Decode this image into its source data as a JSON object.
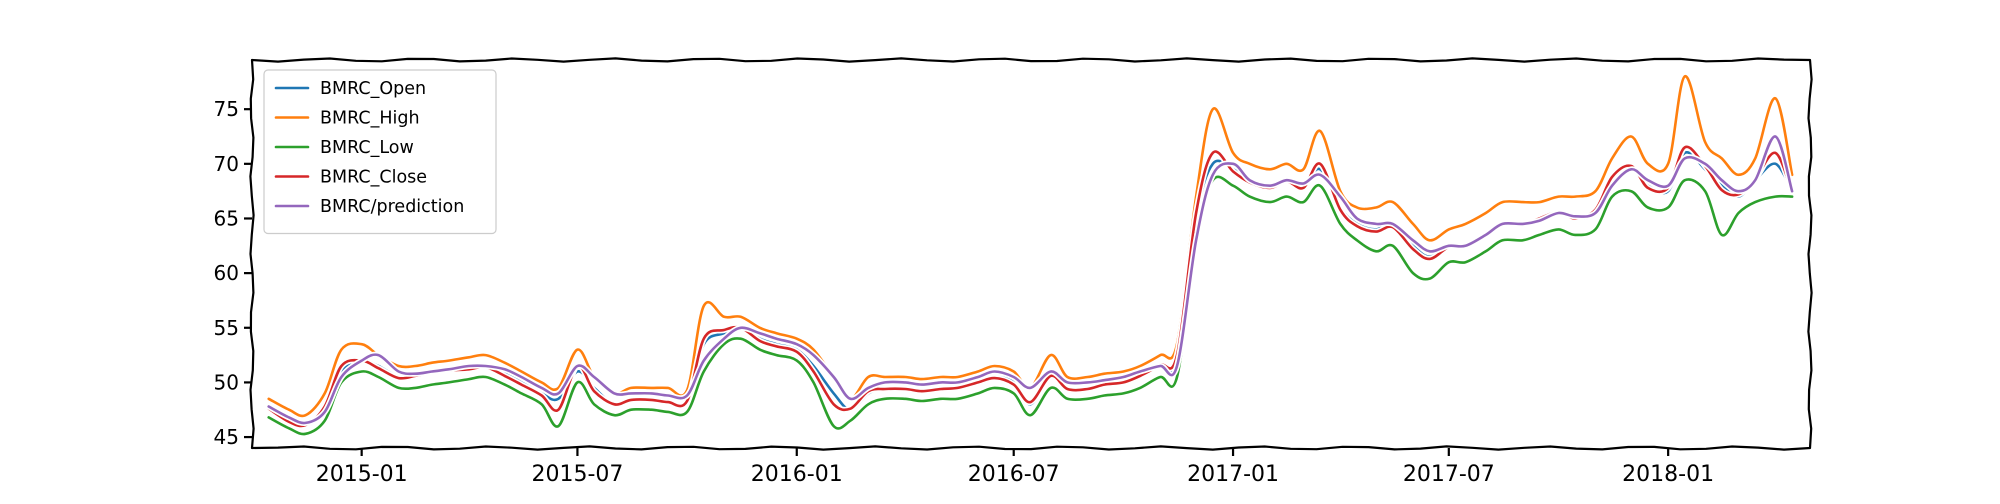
{
  "chart_data": {
    "type": "line",
    "title": "",
    "xlabel": "",
    "ylabel": "",
    "style": "xkcd",
    "x_axis": {
      "type": "date",
      "range": [
        "2014-10-01",
        "2018-04-30"
      ],
      "tick_dates": [
        "2015-01-01",
        "2015-07-01",
        "2016-01-01",
        "2016-07-01",
        "2017-01-01",
        "2017-07-01",
        "2018-01-01"
      ],
      "tick_labels": [
        "2015-01",
        "2015-07",
        "2016-01",
        "2016-07",
        "2017-01",
        "2017-07",
        "2018-01"
      ]
    },
    "y_axis": {
      "range": [
        44,
        79.5
      ],
      "ticks": [
        45,
        50,
        55,
        60,
        65,
        70,
        75
      ],
      "tick_labels": [
        "45",
        "50",
        "55",
        "60",
        "65",
        "70",
        "75"
      ]
    },
    "grid": false,
    "legend": {
      "position": "top-left"
    },
    "x": [
      "2014-10-15",
      "2014-11-01",
      "2014-11-15",
      "2014-12-01",
      "2014-12-15",
      "2015-01-01",
      "2015-01-15",
      "2015-02-01",
      "2015-02-15",
      "2015-03-01",
      "2015-03-15",
      "2015-04-01",
      "2015-04-15",
      "2015-05-01",
      "2015-05-15",
      "2015-06-01",
      "2015-06-15",
      "2015-07-01",
      "2015-07-15",
      "2015-08-01",
      "2015-08-15",
      "2015-09-01",
      "2015-09-15",
      "2015-10-01",
      "2015-10-15",
      "2015-11-01",
      "2015-11-15",
      "2015-12-01",
      "2015-12-15",
      "2016-01-01",
      "2016-01-15",
      "2016-02-01",
      "2016-02-15",
      "2016-03-01",
      "2016-03-15",
      "2016-04-01",
      "2016-04-15",
      "2016-05-01",
      "2016-05-15",
      "2016-06-01",
      "2016-06-15",
      "2016-07-01",
      "2016-07-15",
      "2016-08-01",
      "2016-08-15",
      "2016-09-01",
      "2016-09-15",
      "2016-10-01",
      "2016-10-15",
      "2016-11-01",
      "2016-11-15",
      "2016-12-01",
      "2016-12-15",
      "2017-01-01",
      "2017-01-15",
      "2017-02-01",
      "2017-02-15",
      "2017-03-01",
      "2017-03-15",
      "2017-04-01",
      "2017-04-15",
      "2017-05-01",
      "2017-05-15",
      "2017-06-01",
      "2017-06-15",
      "2017-07-01",
      "2017-07-15",
      "2017-08-01",
      "2017-08-15",
      "2017-09-01",
      "2017-09-15",
      "2017-10-01",
      "2017-10-15",
      "2017-11-01",
      "2017-11-15",
      "2017-12-01",
      "2017-12-15",
      "2018-01-01",
      "2018-01-15",
      "2018-02-01",
      "2018-02-15",
      "2018-03-01",
      "2018-03-15",
      "2018-04-01",
      "2018-04-15"
    ],
    "series": [
      {
        "name": "BMRC_Open",
        "color": "#1f77b4",
        "values": [
          47.5,
          46.5,
          46.0,
          47.5,
          51.0,
          52.0,
          51.5,
          50.5,
          50.5,
          50.8,
          51.0,
          51.3,
          51.5,
          50.8,
          50.0,
          49.0,
          48.5,
          51.0,
          49.5,
          48.0,
          48.5,
          48.5,
          48.3,
          48.3,
          53.5,
          54.5,
          55.0,
          54.0,
          53.5,
          53.0,
          51.5,
          49.0,
          47.5,
          49.0,
          49.5,
          49.5,
          49.3,
          49.5,
          49.5,
          50.0,
          50.5,
          50.0,
          48.0,
          50.5,
          49.5,
          49.5,
          49.8,
          50.0,
          50.5,
          51.5,
          52.0,
          65.0,
          70.0,
          69.5,
          68.5,
          68.0,
          68.5,
          68.0,
          69.5,
          66.0,
          64.5,
          64.0,
          64.5,
          62.5,
          61.5,
          62.5,
          62.5,
          63.5,
          64.5,
          64.5,
          65.0,
          65.5,
          65.0,
          65.5,
          68.5,
          69.5,
          68.0,
          67.5,
          71.0,
          69.5,
          68.0,
          67.0,
          68.5,
          70.0,
          67.5
        ]
      },
      {
        "name": "BMRC_High",
        "color": "#ff7f0e",
        "values": [
          48.5,
          47.5,
          47.0,
          49.0,
          53.0,
          53.5,
          52.5,
          51.5,
          51.5,
          51.8,
          52.0,
          52.3,
          52.5,
          51.8,
          51.0,
          50.0,
          49.5,
          53.0,
          50.5,
          49.0,
          49.5,
          49.5,
          49.5,
          49.3,
          57.0,
          56.0,
          56.0,
          55.0,
          54.5,
          54.0,
          53.0,
          50.5,
          48.5,
          50.5,
          50.5,
          50.5,
          50.3,
          50.5,
          50.5,
          51.0,
          51.5,
          51.0,
          49.5,
          52.5,
          50.5,
          50.5,
          50.8,
          51.0,
          51.5,
          52.5,
          53.5,
          67.0,
          75.0,
          71.0,
          70.0,
          69.5,
          70.0,
          69.5,
          73.0,
          67.5,
          66.0,
          66.0,
          66.5,
          64.5,
          63.0,
          64.0,
          64.5,
          65.5,
          66.5,
          66.5,
          66.5,
          67.0,
          67.0,
          67.5,
          70.5,
          72.5,
          70.0,
          70.0,
          78.0,
          72.0,
          70.5,
          69.0,
          70.5,
          76.0,
          69.0
        ]
      },
      {
        "name": "BMRC_Low",
        "color": "#2ca02c",
        "values": [
          46.8,
          45.8,
          45.3,
          46.5,
          50.0,
          51.0,
          50.5,
          49.5,
          49.5,
          49.8,
          50.0,
          50.3,
          50.5,
          49.8,
          49.0,
          48.0,
          46.0,
          50.0,
          48.0,
          47.0,
          47.5,
          47.5,
          47.3,
          47.3,
          51.0,
          53.5,
          54.0,
          53.0,
          52.5,
          52.0,
          50.0,
          46.0,
          46.5,
          48.0,
          48.5,
          48.5,
          48.3,
          48.5,
          48.5,
          49.0,
          49.5,
          49.0,
          47.0,
          49.5,
          48.5,
          48.5,
          48.8,
          49.0,
          49.5,
          50.5,
          50.5,
          63.0,
          68.5,
          68.0,
          67.0,
          66.5,
          67.0,
          66.5,
          68.0,
          64.5,
          63.0,
          62.0,
          62.5,
          60.0,
          59.5,
          61.0,
          61.0,
          62.0,
          63.0,
          63.0,
          63.5,
          64.0,
          63.5,
          64.0,
          67.0,
          67.5,
          66.0,
          66.0,
          68.5,
          67.5,
          63.5,
          65.5,
          66.5,
          67.0,
          67.0
        ]
      },
      {
        "name": "BMRC_Close",
        "color": "#d62728",
        "values": [
          47.6,
          46.4,
          46.1,
          47.8,
          51.5,
          52.0,
          51.3,
          50.4,
          50.6,
          50.9,
          51.1,
          51.2,
          51.4,
          50.6,
          49.8,
          48.8,
          47.5,
          51.5,
          49.2,
          48.0,
          48.4,
          48.4,
          48.2,
          48.3,
          54.0,
          54.8,
          55.0,
          53.8,
          53.3,
          52.8,
          51.0,
          48.0,
          47.6,
          49.2,
          49.4,
          49.4,
          49.2,
          49.4,
          49.5,
          50.0,
          50.4,
          49.8,
          48.2,
          50.6,
          49.4,
          49.4,
          49.8,
          50.0,
          50.6,
          51.6,
          52.5,
          65.5,
          71.0,
          69.3,
          68.3,
          67.8,
          68.4,
          67.8,
          70.0,
          65.8,
          64.3,
          63.8,
          64.2,
          62.2,
          61.3,
          62.4,
          62.6,
          63.6,
          64.6,
          64.4,
          65.0,
          65.6,
          65.0,
          65.8,
          68.8,
          69.8,
          67.8,
          67.8,
          71.5,
          69.8,
          67.6,
          67.2,
          68.6,
          71.0,
          67.4
        ]
      },
      {
        "name": "BMRC/prediction",
        "color": "#9467bd",
        "values": [
          47.8,
          46.8,
          46.3,
          47.3,
          50.5,
          52.0,
          52.5,
          51.0,
          50.8,
          51.0,
          51.2,
          51.5,
          51.5,
          51.2,
          50.5,
          49.5,
          49.0,
          51.5,
          50.5,
          49.0,
          49.0,
          49.0,
          48.8,
          48.8,
          52.0,
          54.0,
          55.0,
          54.5,
          54.0,
          53.5,
          52.5,
          50.5,
          48.5,
          49.5,
          50.0,
          50.0,
          49.8,
          50.0,
          50.0,
          50.5,
          51.0,
          50.5,
          49.5,
          51.0,
          50.0,
          50.0,
          50.2,
          50.5,
          51.0,
          51.5,
          51.5,
          63.0,
          69.0,
          70.0,
          68.5,
          68.0,
          68.5,
          68.2,
          69.0,
          67.0,
          65.0,
          64.5,
          64.5,
          63.0,
          62.0,
          62.5,
          62.5,
          63.5,
          64.5,
          64.5,
          64.8,
          65.5,
          65.2,
          65.5,
          68.0,
          69.5,
          68.5,
          68.0,
          70.5,
          70.0,
          68.5,
          67.5,
          68.5,
          72.5,
          67.5
        ]
      }
    ]
  }
}
